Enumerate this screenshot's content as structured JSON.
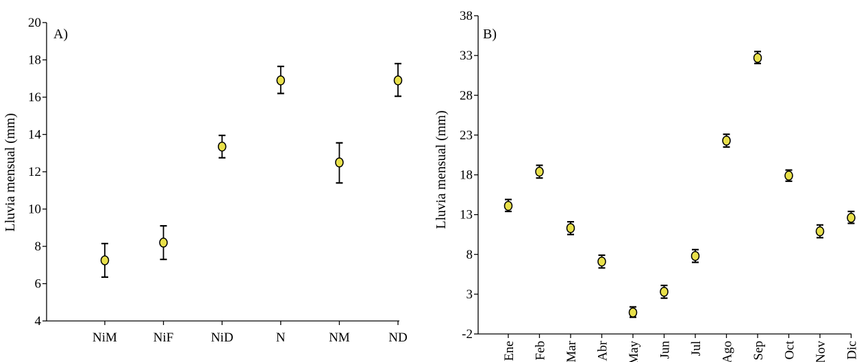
{
  "colors": {
    "marker_fill": "#e8e04a",
    "marker_stroke": "#000000",
    "axis": "#000000"
  },
  "chart_data": [
    {
      "type": "scatter",
      "panel_label": "A)",
      "ylabel": "Lluvia mensual (mm)",
      "xlabel": "",
      "ylim": [
        4,
        20
      ],
      "yticks": [
        "4",
        "6",
        "8",
        "10",
        "12",
        "14",
        "16",
        "18",
        "20"
      ],
      "categories": [
        "NiM",
        "NiF",
        "NiD",
        "N",
        "NM",
        "ND"
      ],
      "values": [
        7.25,
        8.2,
        13.35,
        16.9,
        12.5,
        16.9
      ],
      "err_low": [
        6.35,
        7.3,
        12.75,
        16.2,
        11.4,
        16.05
      ],
      "err_high": [
        8.15,
        9.1,
        13.95,
        17.65,
        13.55,
        17.8
      ],
      "error_bars": true,
      "grid": false
    },
    {
      "type": "scatter",
      "panel_label": "B)",
      "ylabel": "Lluvia mensual (mm)",
      "xlabel": "",
      "ylim": [
        -2,
        38
      ],
      "yticks": [
        "-2",
        "3",
        "8",
        "13",
        "18",
        "23",
        "28",
        "33",
        "38"
      ],
      "categories": [
        "Ene",
        "Feb",
        "Mar",
        "Abr",
        "May",
        "Jun",
        "Jul",
        "Ago",
        "Sep",
        "Oct",
        "Nov",
        "Dic"
      ],
      "values": [
        14.1,
        18.4,
        11.3,
        7.1,
        0.7,
        3.3,
        7.8,
        22.3,
        32.7,
        17.9,
        10.9,
        12.6
      ],
      "err_low": [
        13.4,
        17.6,
        10.5,
        6.3,
        0.1,
        2.5,
        7.0,
        21.5,
        32.0,
        17.2,
        10.1,
        11.9
      ],
      "err_high": [
        14.9,
        19.2,
        12.1,
        7.9,
        1.4,
        4.1,
        8.6,
        23.1,
        33.5,
        18.6,
        11.7,
        13.4
      ],
      "error_bars": true,
      "grid": false
    }
  ]
}
